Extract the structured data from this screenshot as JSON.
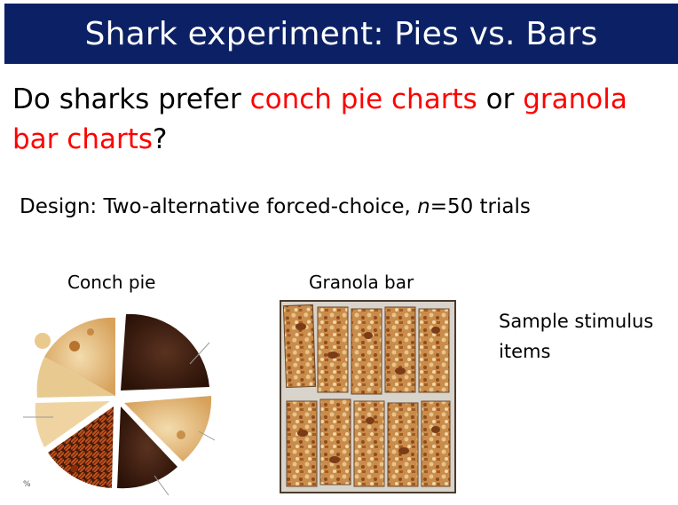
{
  "header": {
    "title": "Shark experiment: Pies vs. Bars"
  },
  "question": {
    "prefix": "Do sharks prefer ",
    "option_a": "conch pie charts",
    "middle": " or ",
    "option_b": "granola bar charts",
    "suffix": "?"
  },
  "design": {
    "prefix": "Design: Two-alternative forced-choice,  ",
    "n_symbol": "n",
    "suffix": "=50 trials"
  },
  "stimuli": {
    "pie_label": "Conch pie",
    "bar_label": "Granola bar",
    "caption_line1": "Sample stimulus",
    "caption_line2": "items",
    "pie_annotation": "%"
  },
  "colors": {
    "title_bg": "#0c2165",
    "title_text": "#ffffff",
    "highlight": "#ff0000"
  },
  "icons": {
    "pie_image": "conch-pie-photo",
    "bar_image": "granola-bar-photo"
  }
}
